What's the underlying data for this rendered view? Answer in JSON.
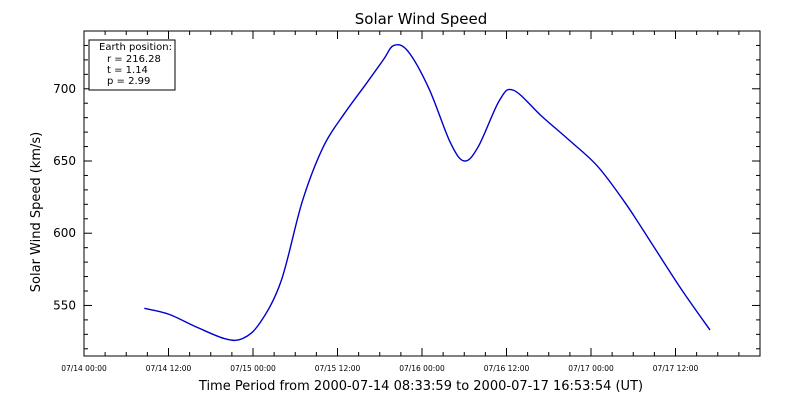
{
  "chart_data": {
    "type": "line",
    "title": "Solar Wind Speed",
    "xlabel": "Time Period from 2000-07-14 08:33:59 to 2000-07-17 16:53:54 (UT)",
    "ylabel": "Solar Wind Speed (km/s)",
    "xlim": [
      "2000-07-14 00:00",
      "2000-07-18 00:00"
    ],
    "ylim": [
      515,
      740
    ],
    "x_tick_labels": [
      "07/14 00:00",
      "07/14 12:00",
      "07/15 00:00",
      "07/15 12:00",
      "07/16 00:00",
      "07/16 12:00",
      "07/17 00:00",
      "07/17 12:00"
    ],
    "y_ticks": [
      550,
      600,
      650,
      700
    ],
    "grid": false,
    "line_color": "#0000cc",
    "legend": {
      "position": "top-left",
      "lines": [
        "Earth position:",
        "r = 216.28",
        "t = 1.14",
        "p = 2.99"
      ]
    },
    "series": [
      {
        "x": [
          "2000-07-14 08:34",
          "2000-07-14 12:00",
          "2000-07-14 16:00",
          "2000-07-14 20:00",
          "2000-07-14 22:30",
          "2000-07-15 01:00",
          "2000-07-15 04:00",
          "2000-07-15 07:00",
          "2000-07-15 10:00",
          "2000-07-15 13:00",
          "2000-07-15 16:00",
          "2000-07-15 18:30",
          "2000-07-15 20:00",
          "2000-07-15 22:00",
          "2000-07-16 01:00",
          "2000-07-16 04:00",
          "2000-07-16 06:00",
          "2000-07-16 08:00",
          "2000-07-16 11:00",
          "2000-07-16 13:00",
          "2000-07-16 17:00",
          "2000-07-16 21:00",
          "2000-07-17 01:00",
          "2000-07-17 05:00",
          "2000-07-17 09:00",
          "2000-07-17 13:00",
          "2000-07-17 16:54"
        ],
        "y": [
          548,
          544,
          535,
          527,
          527,
          538,
          567,
          622,
          660,
          683,
          703,
          720,
          730,
          726,
          700,
          663,
          650,
          660,
          692,
          699,
          681,
          664,
          646,
          620,
          590,
          560,
          533
        ]
      }
    ]
  }
}
